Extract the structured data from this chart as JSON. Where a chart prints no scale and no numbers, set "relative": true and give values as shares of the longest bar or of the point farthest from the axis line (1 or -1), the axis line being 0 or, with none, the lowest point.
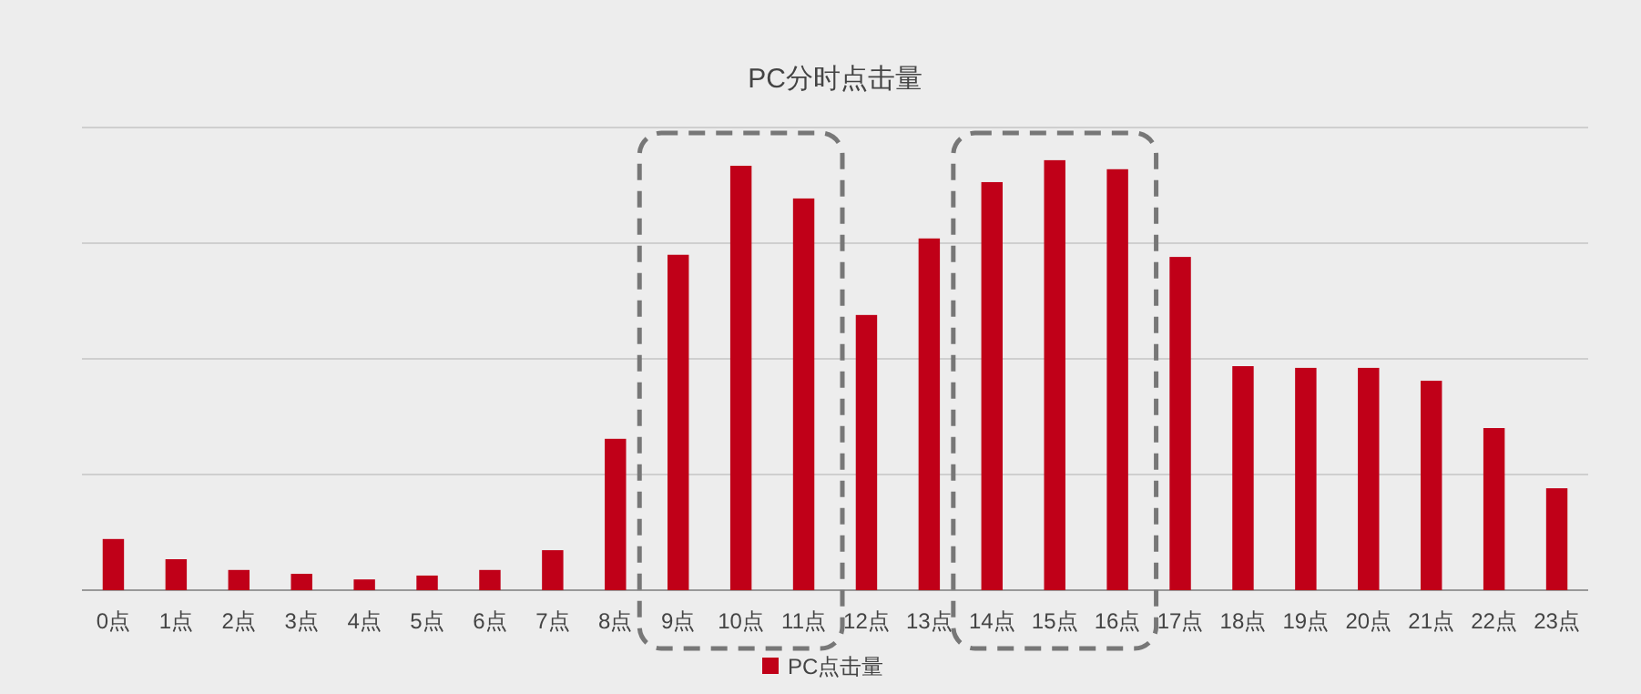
{
  "chart_data": {
    "type": "bar",
    "title": "PC分时点击量",
    "relative": true,
    "grid": "y",
    "legend": "bottom",
    "categories": [
      "0点",
      "1点",
      "2点",
      "3点",
      "4点",
      "5点",
      "6点",
      "7点",
      "8点",
      "9点",
      "10点",
      "11点",
      "12点",
      "13点",
      "14点",
      "15点",
      "16点",
      "17点",
      "18点",
      "19点",
      "20点",
      "21点",
      "22点",
      "23点"
    ],
    "series": [
      {
        "name": "PC点击量",
        "color": "#c00018",
        "values": [
          0.119,
          0.072,
          0.047,
          0.038,
          0.025,
          0.034,
          0.047,
          0.093,
          0.352,
          0.78,
          0.987,
          0.911,
          0.64,
          0.818,
          0.949,
          1,
          0.979,
          0.775,
          0.521,
          0.517,
          0.517,
          0.487,
          0.377,
          0.237
        ]
      }
    ]
  }
}
